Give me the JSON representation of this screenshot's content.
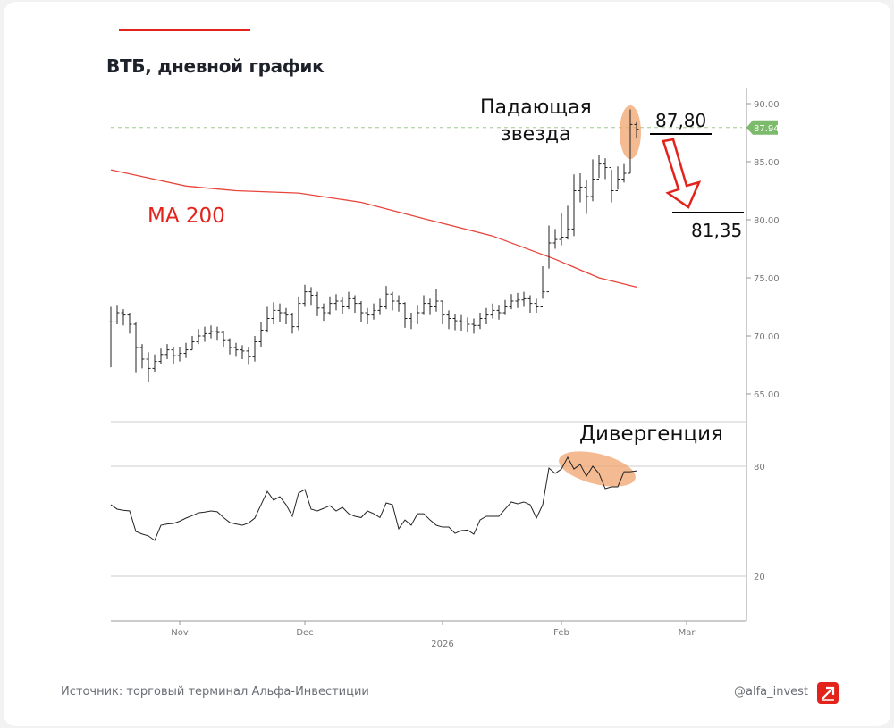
{
  "title": "ВТБ, дневной график",
  "footer": {
    "source": "Источник: торговый терминал Альфа-Инвестиции",
    "handle": "@alfa_invest"
  },
  "colors": {
    "accent": "#e3231b",
    "ma": "#e8453c",
    "price_label": "#7cba6c",
    "highlight": "#f0a36e"
  },
  "annotations": {
    "shooting_star": [
      "Падающая",
      "звезда"
    ],
    "level_high": "87,80",
    "level_low": "81,35",
    "ma_label": "MA 200",
    "divergence": "Дивергенция"
  },
  "chart_data": [
    {
      "type": "ohlc",
      "yaxis": {
        "ticks": [
          "65.00",
          "70.00",
          "75.00",
          "80.00",
          "85.00",
          "90.00"
        ],
        "range": [
          62.5,
          91.2
        ]
      },
      "last_price_label": "87.940",
      "last_price": 87.94,
      "levels": [
        87.8,
        81.35
      ],
      "xaxis": {
        "month_labels": [
          {
            "label": "Nov",
            "date": "2025-11-03"
          },
          {
            "label": "Dec",
            "date": "2025-12-01"
          },
          {
            "label": "Feb",
            "date": "2026-02-02"
          },
          {
            "label": "Mar",
            "date": "2026-03-02"
          }
        ],
        "year_label": {
          "label": "2026",
          "date": "2026-01-06"
        }
      },
      "dates": [
        "10-17",
        "10-20",
        "10-21",
        "10-22",
        "10-23",
        "10-24",
        "10-27",
        "10-28",
        "10-29",
        "10-30",
        "10-31",
        "11-03",
        "11-04",
        "11-05",
        "11-06",
        "11-07",
        "11-10",
        "11-11",
        "11-12",
        "11-13",
        "11-14",
        "11-17",
        "11-18",
        "11-19",
        "11-20",
        "11-21",
        "11-24",
        "11-25",
        "11-26",
        "11-27",
        "11-28",
        "12-01",
        "12-02",
        "12-03",
        "12-04",
        "12-05",
        "12-08",
        "12-09",
        "12-10",
        "12-11",
        "12-12",
        "12-15",
        "12-16",
        "12-17",
        "12-18",
        "12-19",
        "12-22",
        "12-23",
        "12-24",
        "12-25",
        "12-26",
        "12-29",
        "12-30",
        "01-06",
        "01-07",
        "01-08",
        "01-09",
        "01-12",
        "01-13",
        "01-14",
        "01-15",
        "01-16",
        "01-19",
        "01-20",
        "01-21",
        "01-22",
        "01-23",
        "01-26",
        "01-27",
        "01-28",
        "01-29",
        "01-30",
        "02-02",
        "02-03",
        "02-04",
        "02-05",
        "02-06",
        "02-09",
        "02-10",
        "02-11",
        "02-12",
        "02-13",
        "02-16",
        "02-17",
        "02-18"
      ],
      "close": [
        71.2,
        72.0,
        71.8,
        71.0,
        69.0,
        68.0,
        67.2,
        67.8,
        68.4,
        68.8,
        68.3,
        68.5,
        68.8,
        69.5,
        70.0,
        70.2,
        70.4,
        70.3,
        69.6,
        69.0,
        68.8,
        68.7,
        68.2,
        69.5,
        70.5,
        71.5,
        72.2,
        72.0,
        71.8,
        70.8,
        72.8,
        73.8,
        73.5,
        72.4,
        72.0,
        72.8,
        73.0,
        72.5,
        73.2,
        72.8,
        72.0,
        71.8,
        72.2,
        72.5,
        73.6,
        73.0,
        72.8,
        71.5,
        71.2,
        72.0,
        72.8,
        72.5,
        73.0,
        71.8,
        71.5,
        71.3,
        71.2,
        71.0,
        70.9,
        71.5,
        71.8,
        72.2,
        72.0,
        72.5,
        73.0,
        73.1,
        73.2,
        72.8,
        72.5,
        73.8,
        78.0,
        78.3,
        78.5,
        79.2,
        82.5,
        82.8,
        82.0,
        83.5,
        84.8,
        84.5,
        82.5,
        83.5,
        84.0,
        88.2,
        87.8
      ],
      "high": [
        72.5,
        72.6,
        72.3,
        72.0,
        71.2,
        69.3,
        68.6,
        68.4,
        68.9,
        69.3,
        69.0,
        69.0,
        69.4,
        70.0,
        70.6,
        70.8,
        70.9,
        70.8,
        70.4,
        69.8,
        69.4,
        69.2,
        69.0,
        70.0,
        71.2,
        72.5,
        72.9,
        72.8,
        72.4,
        72.0,
        73.4,
        74.4,
        74.2,
        73.8,
        72.8,
        73.4,
        73.6,
        73.3,
        73.8,
        73.5,
        73.0,
        72.4,
        72.8,
        73.2,
        74.3,
        73.8,
        73.5,
        72.9,
        72.0,
        72.6,
        73.5,
        73.2,
        74.0,
        73.0,
        72.2,
        71.9,
        71.8,
        71.6,
        71.5,
        72.0,
        72.4,
        72.8,
        72.6,
        73.1,
        73.6,
        73.7,
        73.8,
        73.5,
        73.2,
        76.0,
        79.5,
        79.2,
        80.6,
        81.2,
        83.9,
        84.0,
        83.4,
        85.2,
        85.6,
        85.3,
        84.3,
        84.6,
        84.8,
        89.5,
        88.4
      ],
      "low": [
        67.3,
        71.0,
        70.9,
        70.2,
        66.8,
        67.2,
        66.0,
        66.9,
        67.6,
        68.0,
        67.6,
        67.8,
        68.1,
        68.8,
        69.3,
        69.5,
        69.8,
        69.6,
        69.0,
        68.4,
        68.2,
        68.0,
        67.5,
        67.8,
        69.0,
        70.3,
        71.0,
        71.2,
        71.0,
        70.2,
        70.5,
        72.5,
        72.6,
        71.7,
        71.3,
        71.8,
        72.2,
        71.9,
        72.3,
        72.0,
        71.2,
        71.0,
        71.4,
        71.8,
        72.3,
        72.2,
        72.1,
        70.7,
        70.6,
        71.0,
        71.8,
        71.8,
        72.1,
        71.0,
        70.6,
        70.5,
        70.4,
        70.3,
        70.2,
        70.6,
        71.0,
        71.5,
        71.4,
        71.8,
        72.3,
        72.4,
        72.5,
        72.0,
        72.0,
        73.2,
        75.8,
        77.5,
        77.8,
        78.3,
        78.6,
        81.5,
        80.5,
        81.6,
        83.6,
        83.5,
        81.5,
        82.6,
        83.2,
        84.0,
        87.0
      ]
    },
    {
      "type": "line",
      "name": "MA 200",
      "points": [
        {
          "date": "10-17",
          "value": 84.3
        },
        {
          "date": "11-04",
          "value": 82.9
        },
        {
          "date": "11-14",
          "value": 82.5
        },
        {
          "date": "11-28",
          "value": 82.3
        },
        {
          "date": "12-12",
          "value": 81.5
        },
        {
          "date": "12-26",
          "value": 80.1
        },
        {
          "date": "01-16",
          "value": 78.6
        },
        {
          "date": "01-30",
          "value": 76.6
        },
        {
          "date": "02-10",
          "value": 75.0
        },
        {
          "date": "02-18",
          "value": 74.2
        }
      ]
    },
    {
      "type": "line",
      "yaxis": {
        "ticks": [
          "20",
          "80"
        ],
        "range": [
          0,
          102
        ]
      },
      "values": [
        59,
        56.6,
        56,
        55.6,
        44.4,
        43,
        42,
        39.5,
        47.8,
        48.5,
        48.8,
        50,
        51.7,
        53,
        54.6,
        55,
        55.6,
        55.2,
        52,
        49.3,
        48.5,
        47.8,
        49,
        51.7,
        59,
        66.3,
        61.5,
        63.4,
        59,
        52.7,
        65.4,
        67.3,
        56.6,
        55.6,
        57,
        58.5,
        55.6,
        57.6,
        54.1,
        52.7,
        52,
        55.6,
        54.1,
        52,
        60,
        59,
        45.9,
        50.7,
        47.8,
        54.1,
        54.1,
        50.7,
        47.8,
        46.8,
        46.8,
        43.4,
        44.9,
        45.2,
        42.9,
        50.7,
        52.7,
        52.7,
        52.7,
        56.6,
        60.5,
        59.5,
        60.5,
        59,
        51.7,
        59,
        79,
        76.1,
        78.5,
        84.9,
        78.5,
        81,
        74.6,
        80,
        76.1,
        67.8,
        68.8,
        68.8,
        77,
        77,
        77.5
      ]
    }
  ]
}
